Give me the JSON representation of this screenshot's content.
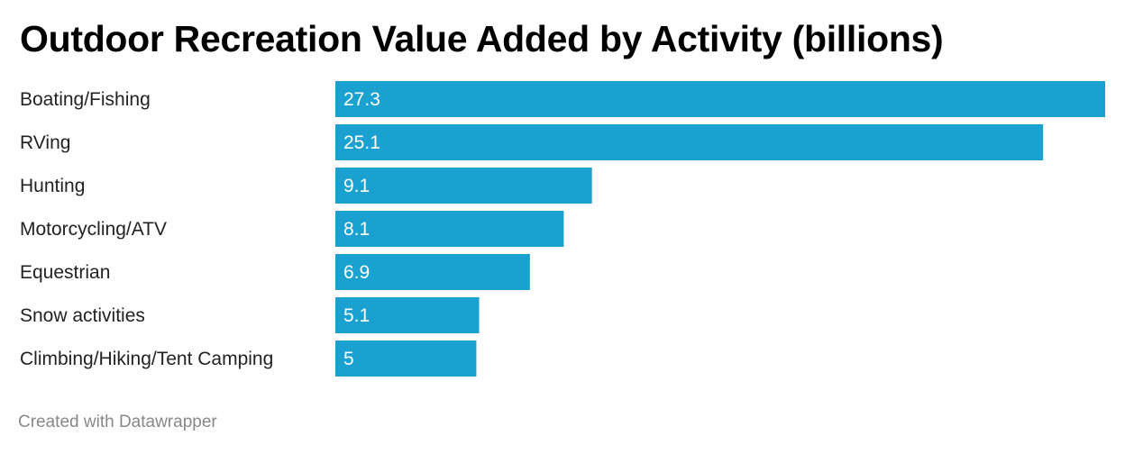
{
  "title": "Outdoor Recreation Value Added by Activity (billions)",
  "footer": "Created with Datawrapper",
  "colors": {
    "bar": "#1aa1cf",
    "label": "#222222",
    "value": "#ffffff",
    "footer": "#888888"
  },
  "chart_data": {
    "type": "bar",
    "orientation": "horizontal",
    "title": "Outdoor Recreation Value Added by Activity (billions)",
    "categories": [
      "Boating/Fishing",
      "RVing",
      "Hunting",
      "Motorcycling/ATV",
      "Equestrian",
      "Snow activities",
      "Climbing/Hiking/Tent Camping"
    ],
    "values": [
      27.3,
      25.1,
      9.1,
      8.1,
      6.9,
      5.1,
      5
    ],
    "value_labels": [
      "27.3",
      "25.1",
      "9.1",
      "8.1",
      "6.9",
      "5.1",
      "5"
    ],
    "xlim": [
      0,
      27.3
    ],
    "grid": false,
    "legend": "none"
  }
}
